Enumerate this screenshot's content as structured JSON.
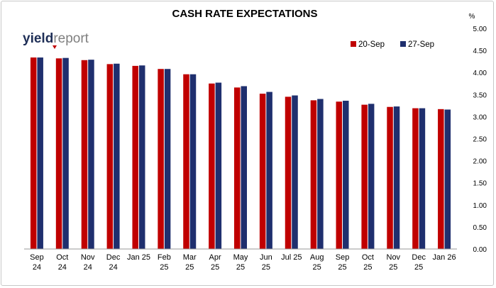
{
  "chart_data": {
    "type": "bar",
    "title": "CASH RATE EXPECTATIONS",
    "y_unit_label": "%",
    "ylim": [
      0,
      5
    ],
    "y_ticks": [
      "0.00",
      "0.50",
      "1.00",
      "1.50",
      "2.00",
      "2.50",
      "3.00",
      "3.50",
      "4.00",
      "4.50",
      "5.00"
    ],
    "y_axis_side": "right",
    "grid": false,
    "legend_position": "top-right",
    "categories": [
      [
        "Sep",
        "24"
      ],
      [
        "Oct",
        "24"
      ],
      [
        "Nov",
        "24"
      ],
      [
        "Dec",
        "24"
      ],
      [
        "Jan 25",
        ""
      ],
      [
        "Feb",
        "25"
      ],
      [
        "Mar",
        "25"
      ],
      [
        "Apr",
        "25"
      ],
      [
        "May",
        "25"
      ],
      [
        "Jun",
        "25"
      ],
      [
        "Jul 25",
        ""
      ],
      [
        "Aug",
        "25"
      ],
      [
        "Sep",
        "25"
      ],
      [
        "Oct",
        "25"
      ],
      [
        "Nov",
        "25"
      ],
      [
        "Dec",
        "25"
      ],
      [
        "Jan 26",
        ""
      ]
    ],
    "series": [
      {
        "name": "20-Sep",
        "color": "#c00000",
        "values": [
          4.34,
          4.32,
          4.28,
          4.19,
          4.15,
          4.08,
          3.96,
          3.75,
          3.66,
          3.52,
          3.45,
          3.37,
          3.34,
          3.27,
          3.22,
          3.19,
          3.17
        ]
      },
      {
        "name": "27-Sep",
        "color": "#1f2f6e",
        "values": [
          4.34,
          4.33,
          4.29,
          4.2,
          4.16,
          4.08,
          3.96,
          3.77,
          3.69,
          3.56,
          3.48,
          3.4,
          3.36,
          3.29,
          3.23,
          3.19,
          3.16
        ]
      }
    ]
  },
  "logo": {
    "part1": "yield",
    "part2": "report"
  }
}
